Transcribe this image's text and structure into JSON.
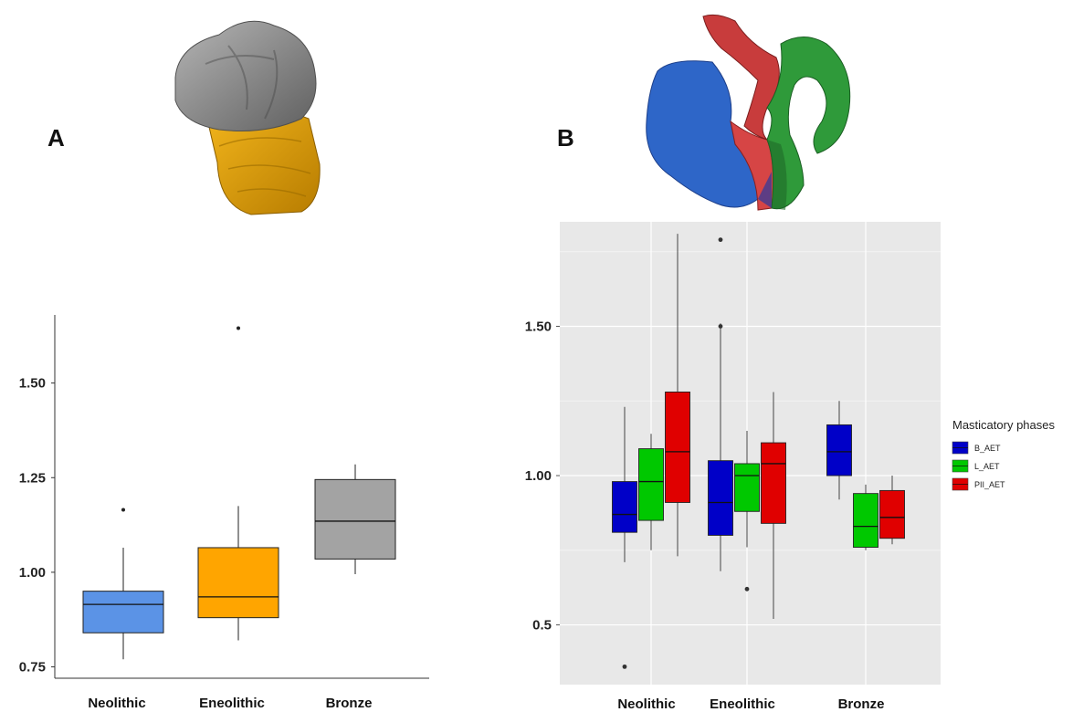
{
  "panels": {
    "a_label": "A",
    "b_label": "B"
  },
  "colors": {
    "a_boxes": [
      "#5b93e6",
      "#ffa500",
      "#a3a3a3"
    ],
    "b_series": [
      "#0000c8",
      "#00c800",
      "#e00000"
    ],
    "b_background": "#e8e8e8",
    "model_a_top": "#8a8a8a",
    "model_a_bottom": "#e0a000"
  },
  "icons": {
    "model_a": "tooth-3d-model-icon",
    "model_b": "tooth-segmented-3d-model-icon"
  },
  "chart_data": [
    {
      "type": "boxplot",
      "categories": [
        "Neolithic",
        "Eneolithic",
        "Bronze"
      ],
      "ylim": [
        0.72,
        1.68
      ],
      "yticks": [
        0.75,
        1.0,
        1.25,
        1.5
      ],
      "ytick_labels": [
        "0.75",
        "1.00",
        "1.25",
        "1.50"
      ],
      "grid": false,
      "boxes": [
        {
          "category": "Neolithic",
          "whisker_low": 0.77,
          "q1": 0.84,
          "median": 0.915,
          "q3": 0.95,
          "whisker_high": 1.065,
          "outliers": [
            1.165
          ]
        },
        {
          "category": "Eneolithic",
          "whisker_low": 0.82,
          "q1": 0.88,
          "median": 0.935,
          "q3": 1.065,
          "whisker_high": 1.175,
          "outliers": [
            1.645
          ]
        },
        {
          "category": "Bronze",
          "whisker_low": 0.995,
          "q1": 1.035,
          "median": 1.135,
          "q3": 1.245,
          "whisker_high": 1.285,
          "outliers": []
        }
      ]
    },
    {
      "type": "boxplot",
      "categories": [
        "Neolithic",
        "Eneolithic",
        "Bronze"
      ],
      "ylim": [
        0.3,
        1.85
      ],
      "yticks": [
        0.5,
        1.0,
        1.5
      ],
      "ytick_labels": [
        "0.5",
        "1.00",
        "1.50"
      ],
      "grid": true,
      "legend": {
        "title": "Masticatory phases",
        "position": "right"
      },
      "series": [
        {
          "name": "B_AET",
          "boxes": [
            {
              "category": "Neolithic",
              "whisker_low": 0.71,
              "q1": 0.81,
              "median": 0.87,
              "q3": 0.98,
              "whisker_high": 1.23,
              "outliers": [
                0.36
              ]
            },
            {
              "category": "Eneolithic",
              "whisker_low": 0.68,
              "q1": 0.8,
              "median": 0.91,
              "q3": 1.05,
              "whisker_high": 1.51,
              "outliers": [
                1.5,
                1.79
              ]
            },
            {
              "category": "Bronze",
              "whisker_low": 0.92,
              "q1": 1.0,
              "median": 1.08,
              "q3": 1.17,
              "whisker_high": 1.25,
              "outliers": []
            }
          ]
        },
        {
          "name": "L_AET",
          "boxes": [
            {
              "category": "Neolithic",
              "whisker_low": 0.75,
              "q1": 0.85,
              "median": 0.98,
              "q3": 1.09,
              "whisker_high": 1.14,
              "outliers": []
            },
            {
              "category": "Eneolithic",
              "whisker_low": 0.76,
              "q1": 0.88,
              "median": 1.0,
              "q3": 1.04,
              "whisker_high": 1.15,
              "outliers": [
                0.62
              ]
            },
            {
              "category": "Bronze",
              "whisker_low": 0.75,
              "q1": 0.76,
              "median": 0.83,
              "q3": 0.94,
              "whisker_high": 0.97,
              "outliers": []
            }
          ]
        },
        {
          "name": "PII_AET",
          "boxes": [
            {
              "category": "Neolithic",
              "whisker_low": 0.73,
              "q1": 0.91,
              "median": 1.08,
              "q3": 1.28,
              "whisker_high": 1.81,
              "outliers": []
            },
            {
              "category": "Eneolithic",
              "whisker_low": 0.52,
              "q1": 0.84,
              "median": 1.04,
              "q3": 1.11,
              "whisker_high": 1.28,
              "outliers": []
            },
            {
              "category": "Bronze",
              "whisker_low": 0.77,
              "q1": 0.79,
              "median": 0.86,
              "q3": 0.95,
              "whisker_high": 1.0,
              "outliers": []
            }
          ]
        }
      ]
    }
  ]
}
